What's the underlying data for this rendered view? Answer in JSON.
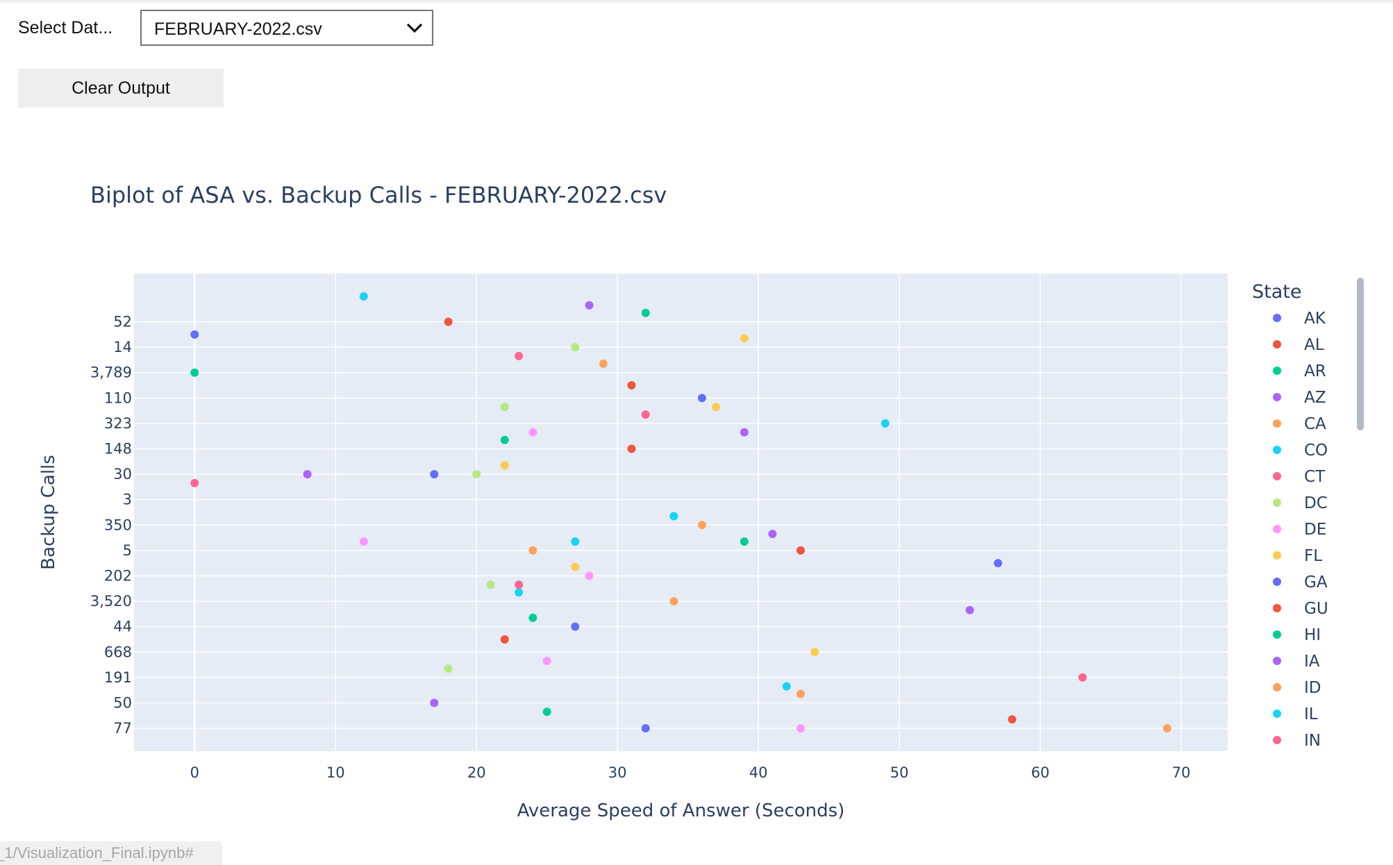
{
  "controls": {
    "select_label": "Select Dat...",
    "select_value": "FEBRUARY-2022.csv",
    "clear_button": "Clear Output"
  },
  "status_link": "_1/Visualization_Final.ipynb#",
  "colors": {
    "plot_bg": "#e5ecf6",
    "text": "#2a3f5f",
    "grid": "#ffffff",
    "palette": [
      "#636efa",
      "#ef553b",
      "#00cc96",
      "#ab63fa",
      "#ffa15a",
      "#19d3f3",
      "#ff6692",
      "#b6e880",
      "#ff97ff",
      "#fecb52"
    ]
  },
  "chart_data": {
    "type": "scatter",
    "title": "Biplot of ASA vs. Backup Calls - FEBRUARY-2022.csv",
    "xlabel": "Average Speed of Answer (Seconds)",
    "ylabel": "Backup Calls",
    "xlim": [
      -4.3,
      73.3
    ],
    "x_ticks": [
      0,
      10,
      20,
      30,
      40,
      50,
      60,
      70
    ],
    "y_categories": [
      "77",
      "50",
      "191",
      "668",
      "44",
      "3,520",
      "202",
      "5",
      "350",
      "3",
      "30",
      "148",
      "323",
      "110",
      "3,789",
      "14",
      "52"
    ],
    "legend_title": "State",
    "legend_placement": "right",
    "grid": true,
    "series": [
      {
        "name": "AK",
        "color": "#636efa",
        "points": [
          [
            0,
            15.5
          ],
          [
            36,
            13
          ],
          [
            17,
            10
          ],
          [
            57,
            6.5
          ],
          [
            27,
            4.0
          ],
          [
            32,
            0
          ]
        ]
      },
      {
        "name": "AL",
        "color": "#ef553b",
        "points": [
          [
            18,
            16
          ],
          [
            31,
            13.5
          ],
          [
            31,
            11
          ],
          [
            43,
            7
          ],
          [
            22,
            3.5
          ],
          [
            58,
            0.35
          ]
        ]
      },
      {
        "name": "AR",
        "color": "#00cc96",
        "points": [
          [
            32,
            16.35
          ],
          [
            0,
            14
          ],
          [
            22,
            11.35
          ],
          [
            39,
            7.35
          ],
          [
            24,
            4.35
          ],
          [
            25,
            0.65
          ]
        ]
      },
      {
        "name": "AZ",
        "color": "#ab63fa",
        "points": [
          [
            28,
            16.65
          ],
          [
            39,
            11.65
          ],
          [
            8,
            10
          ],
          [
            41,
            7.65
          ],
          [
            55,
            4.65
          ],
          [
            17,
            1
          ]
        ]
      },
      {
        "name": "CA",
        "color": "#ffa15a",
        "points": [
          [
            29,
            14.35
          ],
          [
            36,
            8
          ],
          [
            24,
            7
          ],
          [
            34,
            5
          ],
          [
            43,
            1.35
          ],
          [
            69,
            0
          ]
        ]
      },
      {
        "name": "CO",
        "color": "#19d3f3",
        "points": [
          [
            12,
            17
          ],
          [
            49,
            12
          ],
          [
            34,
            8.35
          ],
          [
            27,
            7.35
          ],
          [
            23,
            5.35
          ],
          [
            42,
            1.65
          ]
        ]
      },
      {
        "name": "CT",
        "color": "#ff6692",
        "points": [
          [
            23,
            14.65
          ],
          [
            32,
            12.35
          ],
          [
            0,
            9.65
          ],
          [
            23,
            5.65
          ],
          [
            63,
            2
          ]
        ]
      },
      {
        "name": "DC",
        "color": "#b6e880",
        "points": [
          [
            27,
            15
          ],
          [
            22,
            12.65
          ],
          [
            20,
            10
          ],
          [
            21,
            5.65
          ],
          [
            18,
            2.35
          ]
        ]
      },
      {
        "name": "DE",
        "color": "#ff97ff",
        "points": [
          [
            24,
            11.65
          ],
          [
            12,
            7.35
          ],
          [
            28,
            6
          ],
          [
            25,
            2.65
          ],
          [
            43,
            0
          ]
        ]
      },
      {
        "name": "FL",
        "color": "#fecb52",
        "points": [
          [
            39,
            15.35
          ],
          [
            37,
            12.65
          ],
          [
            22,
            10.35
          ],
          [
            27,
            6.35
          ],
          [
            44,
            3
          ]
        ]
      },
      {
        "name": "GA",
        "color": "#636efa",
        "points": []
      },
      {
        "name": "GU",
        "color": "#ef553b",
        "points": []
      },
      {
        "name": "HI",
        "color": "#00cc96",
        "points": []
      },
      {
        "name": "IA",
        "color": "#ab63fa",
        "points": []
      },
      {
        "name": "ID",
        "color": "#ffa15a",
        "points": []
      },
      {
        "name": "IL",
        "color": "#19d3f3",
        "points": []
      },
      {
        "name": "IN",
        "color": "#ff6692",
        "points": []
      }
    ]
  }
}
